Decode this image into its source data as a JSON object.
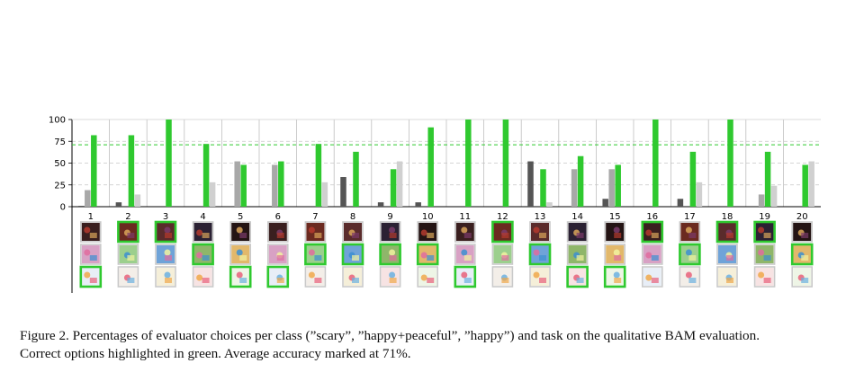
{
  "chart_data": {
    "type": "bar",
    "categories": [
      "1",
      "2",
      "3",
      "4",
      "5",
      "6",
      "7",
      "8",
      "9",
      "10",
      "11",
      "12",
      "13",
      "14",
      "15",
      "16",
      "17",
      "18",
      "19",
      "20"
    ],
    "series": [
      {
        "color": "#555555",
        "values": [
          1,
          5,
          0,
          0,
          0,
          0,
          0,
          34,
          5,
          5,
          0,
          0,
          52,
          0,
          9,
          0,
          9,
          0,
          0,
          0
        ]
      },
      {
        "color": "#a8a8a8",
        "values": [
          19,
          0,
          0,
          0,
          52,
          48,
          0,
          0,
          0,
          0,
          0,
          0,
          0,
          43,
          43,
          0,
          0,
          0,
          14,
          0
        ]
      },
      {
        "color": "#2fc92f",
        "values": [
          82,
          82,
          100,
          72,
          48,
          52,
          72,
          63,
          43,
          91,
          100,
          100,
          43,
          58,
          48,
          100,
          63,
          100,
          63,
          48
        ]
      },
      {
        "color": "#d0d0d0",
        "values": [
          0,
          14,
          0,
          28,
          0,
          0,
          28,
          0,
          52,
          0,
          0,
          0,
          5,
          0,
          0,
          0,
          28,
          0,
          24,
          52
        ]
      }
    ],
    "yticks": [
      "0",
      "25",
      "50",
      "75",
      "100"
    ],
    "ylim": [
      0,
      100
    ],
    "reference_line": {
      "value": 71,
      "color": "#2fc92f",
      "style": "dashed"
    },
    "grid": {
      "horizontal": "dashed",
      "vertical": "solid"
    },
    "thumbnail_rows": [
      "scary",
      "happy+peaceful",
      "happy"
    ],
    "correct_row_per_class": [
      2,
      0,
      0,
      1,
      2,
      2,
      1,
      1,
      1,
      1,
      2,
      0,
      1,
      2,
      2,
      0,
      1,
      0,
      0,
      1
    ],
    "highlight_color": "#2fc92f"
  },
  "caption": {
    "line1": "Figure 2. Percentages of evaluator choices per class (”scary”, ”happy+peaceful”, ”happy”) and task on the qualitative BAM evaluation.",
    "line2": "Correct options highlighted in green. Average accuracy marked at 71%."
  }
}
